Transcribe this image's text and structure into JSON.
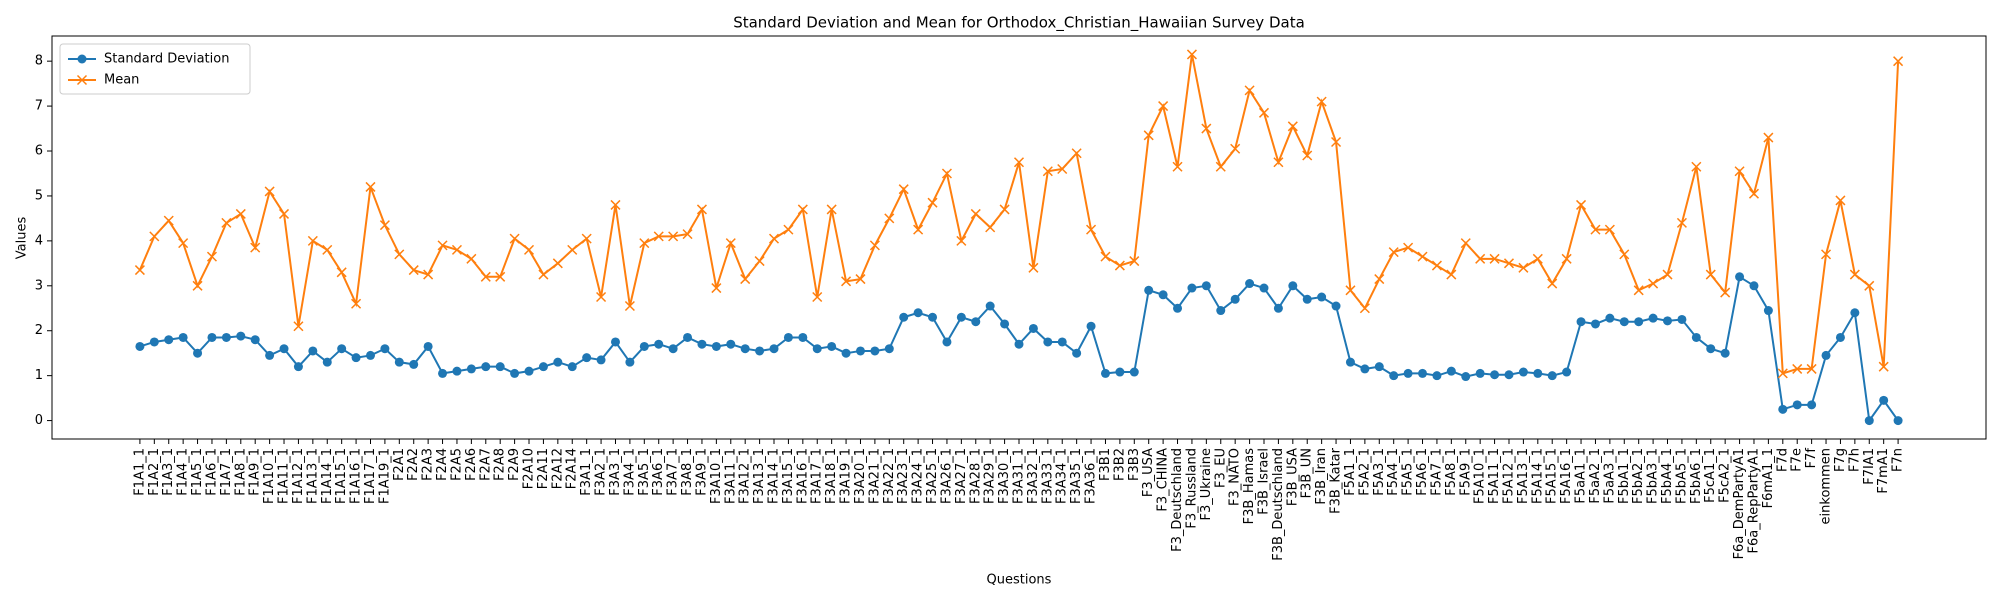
{
  "chart_data": {
    "type": "line",
    "title": "Standard Deviation and Mean for Orthodox_Christian_Hawaiian Survey Data",
    "x_label": "Questions",
    "y_label": "Values",
    "categories": [
      "F1A1_1",
      "F1A2_1",
      "F1A3_1",
      "F1A4_1",
      "F1A5_1",
      "F1A6_1",
      "F1A7_1",
      "F1A8_1",
      "F1A9_1",
      "F1A10_1",
      "F1A11_1",
      "F1A12_1",
      "F1A13_1",
      "F1A14_1",
      "F1A15_1",
      "F1A16_1",
      "F1A17_1",
      "F1A19_1",
      "F2A1",
      "F2A2",
      "F2A3",
      "F2A4",
      "F2A5",
      "F2A6",
      "F2A7",
      "F2A8",
      "F2A9",
      "F2A10",
      "F2A11",
      "F2A12",
      "F2A14",
      "F3A1_1",
      "F3A2_1",
      "F3A3_1",
      "F3A4_1",
      "F3A5_1",
      "F3A6_1",
      "F3A7_1",
      "F3A8_1",
      "F3A9_1",
      "F3A10_1",
      "F3A11_1",
      "F3A12_1",
      "F3A13_1",
      "F3A14_1",
      "F3A15_1",
      "F3A16_1",
      "F3A17_1",
      "F3A18_1",
      "F3A19_1",
      "F3A20_1",
      "F3A21_1",
      "F3A22_1",
      "F3A23_1",
      "F3A24_1",
      "F3A25_1",
      "F3A26_1",
      "F3A27_1",
      "F3A28_1",
      "F3A29_1",
      "F3A30_1",
      "F3A31_1",
      "F3A32_1",
      "F3A33_1",
      "F3A34_1",
      "F3A35_1",
      "F3A36_1",
      "F3B1",
      "F3B2",
      "F3B3",
      "F3_USA",
      "F3_CHINA",
      "F3_Deutschland",
      "F3_Russland",
      "F3_Ukraine",
      "F3_EU",
      "F3_NATO",
      "F3B_Hamas",
      "F3B_Israel",
      "F3B_Deutschland",
      "F3B_USA",
      "F3B_UN",
      "F3B_Iran",
      "F3B_Katar",
      "F5A1_1",
      "F5A2_1",
      "F5A3_1",
      "F5A4_1",
      "F5A5_1",
      "F5A6_1",
      "F5A7_1",
      "F5A8_1",
      "F5A9_1",
      "F5A10_1",
      "F5A11_1",
      "F5A12_1",
      "F5A13_1",
      "F5A14_1",
      "F5A15_1",
      "F5A16_1",
      "F5aA1_1",
      "F5aA2_1",
      "F5aA3_1",
      "F5bA1_1",
      "F5bA2_1",
      "F5bA3_1",
      "F5bA4_1",
      "F5bA5_1",
      "F5bA6_1",
      "F5cA1_1",
      "F5cA2_1",
      "F6a_DemPartyA1",
      "F6a_RepPartyA1",
      "F6mA1_1",
      "F7d",
      "F7e",
      "F7f",
      "einkommen",
      "F7g",
      "F7h",
      "F7IA1",
      "F7mA1",
      "F7n"
    ],
    "series": [
      {
        "name": "Standard Deviation",
        "color": "#1f77b4",
        "marker": "o",
        "values": [
          1.65,
          1.75,
          1.8,
          1.85,
          1.5,
          1.85,
          1.85,
          1.88,
          1.8,
          1.45,
          1.6,
          1.2,
          1.55,
          1.3,
          1.6,
          1.4,
          1.45,
          1.6,
          1.3,
          1.25,
          1.65,
          1.05,
          1.1,
          1.15,
          1.2,
          1.2,
          1.05,
          1.1,
          1.2,
          1.3,
          1.2,
          1.4,
          1.35,
          1.75,
          1.3,
          1.65,
          1.7,
          1.6,
          1.85,
          1.7,
          1.65,
          1.7,
          1.6,
          1.55,
          1.6,
          1.85,
          1.85,
          1.6,
          1.65,
          1.5,
          1.55,
          1.55,
          1.6,
          2.3,
          2.4,
          2.3,
          1.75,
          2.3,
          2.2,
          2.55,
          2.15,
          1.7,
          2.05,
          1.75,
          1.75,
          1.5,
          2.1,
          1.05,
          1.08,
          1.08,
          2.9,
          2.8,
          2.5,
          2.95,
          3.0,
          2.45,
          2.7,
          3.05,
          2.95,
          2.5,
          3.0,
          2.7,
          2.75,
          2.55,
          1.3,
          1.15,
          1.2,
          1.0,
          1.05,
          1.05,
          1.0,
          1.1,
          0.98,
          1.05,
          1.02,
          1.02,
          1.08,
          1.05,
          1.0,
          1.08,
          2.2,
          2.15,
          2.28,
          2.2,
          2.2,
          2.28,
          2.22,
          2.25,
          1.85,
          1.6,
          1.5,
          3.2,
          3.0,
          2.45,
          0.25,
          0.35,
          0.35,
          1.45,
          1.85,
          2.4,
          0.0,
          0.45,
          0.0
        ]
      },
      {
        "name": "Mean",
        "color": "#ff7f0e",
        "marker": "x",
        "values": [
          3.35,
          4.1,
          4.45,
          3.95,
          3.0,
          3.65,
          4.4,
          4.6,
          3.85,
          5.1,
          4.6,
          2.1,
          4.0,
          3.8,
          3.3,
          2.6,
          5.2,
          4.35,
          3.7,
          3.35,
          3.25,
          3.9,
          3.8,
          3.6,
          3.2,
          3.2,
          4.05,
          3.8,
          3.25,
          3.5,
          3.8,
          4.05,
          2.75,
          4.8,
          2.55,
          3.95,
          4.1,
          4.1,
          4.15,
          4.7,
          2.95,
          3.95,
          3.15,
          3.55,
          4.05,
          4.25,
          4.7,
          2.75,
          4.7,
          3.1,
          3.15,
          3.9,
          4.5,
          5.15,
          4.25,
          4.85,
          5.5,
          4.0,
          4.6,
          4.3,
          4.7,
          5.75,
          3.4,
          5.55,
          5.6,
          5.95,
          4.25,
          3.65,
          3.45,
          3.55,
          6.35,
          7.0,
          5.65,
          8.15,
          6.5,
          5.65,
          6.05,
          7.35,
          6.85,
          5.75,
          6.55,
          5.9,
          7.1,
          6.2,
          2.9,
          2.5,
          3.15,
          3.75,
          3.85,
          3.65,
          3.45,
          3.25,
          3.95,
          3.6,
          3.6,
          3.5,
          3.4,
          3.6,
          3.05,
          3.6,
          4.8,
          4.25,
          4.25,
          3.7,
          2.9,
          3.05,
          3.25,
          4.4,
          5.65,
          3.25,
          2.85,
          5.55,
          5.05,
          6.3,
          1.05,
          1.15,
          1.15,
          3.7,
          4.9,
          3.25,
          3.0,
          1.2,
          8.0
        ]
      }
    ],
    "ylim": [
      -0.41,
      8.56
    ],
    "yticks": [
      0,
      1,
      2,
      3,
      4,
      5,
      6,
      7,
      8
    ],
    "legend": "upper left"
  }
}
